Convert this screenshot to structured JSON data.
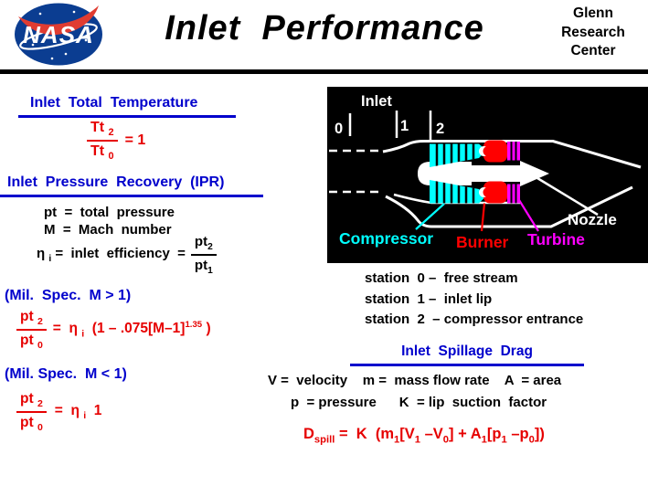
{
  "header": {
    "title": "Inlet  Performance",
    "org_lines": [
      "Glenn",
      "Research",
      "Center"
    ],
    "logo_text": "NASA"
  },
  "colors": {
    "heading_blue": "#0000cc",
    "equation_red": "#e60000",
    "nasa_blue": "#0b3d91",
    "nasa_red": "#e03c31",
    "diagram_background": "#000000",
    "compressor_cyan": "#00ffff",
    "burner_red": "#ff0000",
    "turbine_magenta": "#ff00ff"
  },
  "left": {
    "total_temp": {
      "heading": "Inlet  Total  Temperature",
      "frac_num": [
        {
          "t": "txt",
          "v": "Tt "
        },
        {
          "t": "sub",
          "v": "2"
        }
      ],
      "frac_den": [
        {
          "t": "txt",
          "v": "Tt "
        },
        {
          "t": "sub",
          "v": "0"
        }
      ],
      "rhs": "= 1"
    },
    "ipr": {
      "heading": "Inlet  Pressure  Recovery  (IPR)",
      "def_pt": "pt  =  total  pressure",
      "def_m": "M  =  Mach  number",
      "def_eta": [
        {
          "t": "txt",
          "v": "η "
        },
        {
          "t": "sub",
          "v": "i"
        },
        {
          "t": "txt",
          "v": " =  inlet  efficiency  ="
        }
      ],
      "eta_frac_num": [
        {
          "t": "txt",
          "v": "pt"
        },
        {
          "t": "sub",
          "v": "2"
        }
      ],
      "eta_frac_den": [
        {
          "t": "txt",
          "v": "pt"
        },
        {
          "t": "sub",
          "v": "1"
        }
      ]
    },
    "mil_super": {
      "label": "(Mil.  Spec.  M > 1)",
      "frac_num": [
        {
          "t": "txt",
          "v": "pt "
        },
        {
          "t": "sub",
          "v": "2"
        }
      ],
      "frac_den": [
        {
          "t": "txt",
          "v": "pt "
        },
        {
          "t": "sub",
          "v": "0"
        }
      ],
      "rhs": [
        {
          "t": "txt",
          "v": "=  η "
        },
        {
          "t": "sub",
          "v": "i"
        },
        {
          "t": "txt",
          "v": "  (1 – .075[M–1]"
        },
        {
          "t": "sup",
          "v": "1.35"
        },
        {
          "t": "txt",
          "v": " )"
        }
      ]
    },
    "mil_sub": {
      "label": "(Mil. Spec.  M < 1)",
      "frac_num": [
        {
          "t": "txt",
          "v": "pt "
        },
        {
          "t": "sub",
          "v": "2"
        }
      ],
      "frac_den": [
        {
          "t": "txt",
          "v": "pt "
        },
        {
          "t": "sub",
          "v": "0"
        }
      ],
      "rhs": [
        {
          "t": "txt",
          "v": "=  η "
        },
        {
          "t": "sub",
          "v": "i"
        },
        {
          "t": "txt",
          "v": "  1"
        }
      ]
    }
  },
  "diagram": {
    "inlet_label": "Inlet",
    "station_0": "0",
    "station_1": "1",
    "station_2": "2",
    "compressor_label": "Compressor",
    "burner_label": "Burner",
    "turbine_label": "Turbine",
    "nozzle_label": "Nozzle"
  },
  "right": {
    "stations": [
      "station  0 –  free stream",
      "station  1 –  inlet lip",
      "station  2  – compressor entrance"
    ],
    "spillage": {
      "heading": "Inlet  Spillage  Drag",
      "vars_line1": "V =  velocity    m =  mass flow rate    A  = area",
      "vars_line2": "p  = pressure      K  = lip  suction  factor",
      "equation": [
        {
          "t": "txt",
          "v": "D"
        },
        {
          "t": "sub",
          "v": "spill"
        },
        {
          "t": "txt",
          "v": " =  K  (m"
        },
        {
          "t": "sub",
          "v": "1"
        },
        {
          "t": "txt",
          "v": "[V"
        },
        {
          "t": "sub",
          "v": "1"
        },
        {
          "t": "txt",
          "v": " –V"
        },
        {
          "t": "sub",
          "v": "0"
        },
        {
          "t": "txt",
          "v": "] + A"
        },
        {
          "t": "sub",
          "v": "1"
        },
        {
          "t": "txt",
          "v": "[p"
        },
        {
          "t": "sub",
          "v": "1"
        },
        {
          "t": "txt",
          "v": " –p"
        },
        {
          "t": "sub",
          "v": "0"
        },
        {
          "t": "txt",
          "v": "])"
        }
      ]
    }
  }
}
